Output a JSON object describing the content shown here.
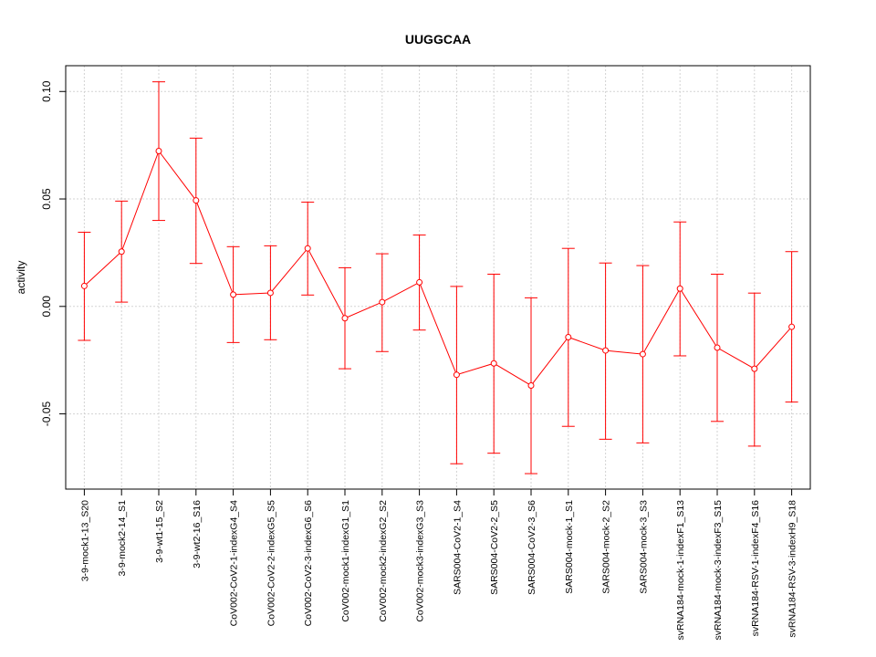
{
  "chart_data": {
    "type": "line",
    "title": "UUGGCAA",
    "xlabel": "",
    "ylabel": "activity",
    "ylim": [
      -0.085,
      0.112
    ],
    "yticks": [
      "0.10",
      "0.05",
      "0.00",
      "-0.05"
    ],
    "ytick_values": [
      0.1,
      0.05,
      0.0,
      -0.05
    ],
    "grid": true,
    "line_color": "#ff0000",
    "grid_color": "#d3d3d3",
    "categories": [
      "3-9-mock1-13_S20",
      "3-9-mock2-14_S1",
      "3-9-wt1-15_S2",
      "3-9-wt2-16_S16",
      "CoV002-CoV2-1-indexG4_S4",
      "CoV002-CoV2-2-indexG5_S5",
      "CoV002-CoV2-3-indexG6_S6",
      "CoV002-mock1-indexG1_S1",
      "CoV002-mock2-indexG2_S2",
      "CoV002-mock3-indexG3_S3",
      "SARS004-CoV2-1_S4",
      "SARS004-CoV2-2_S5",
      "SARS004-CoV2-3_S6",
      "SARS004-mock-1_S1",
      "SARS004-mock-2_S2",
      "SARS004-mock-3_S3",
      "svRNA184-mock-1-indexF1_S13",
      "svRNA184-mock-3-indexF3_S15",
      "svRNA184-RSV-1-indexF4_S16",
      "svRNA184-RSV-3-indexH9_S18"
    ],
    "series": [
      {
        "values": [
          0.0095,
          0.0255,
          0.0723,
          0.0493,
          0.0055,
          0.0063,
          0.027,
          -0.0055,
          0.002,
          0.0112,
          -0.0318,
          -0.0265,
          -0.0368,
          -0.0143,
          -0.0205,
          -0.0222,
          0.0083,
          -0.0192,
          -0.029,
          -0.0095
        ],
        "lower": [
          -0.0158,
          0.002,
          0.04,
          0.02,
          -0.0168,
          -0.0155,
          0.0053,
          -0.029,
          -0.021,
          -0.011,
          -0.0732,
          -0.0683,
          -0.0778,
          -0.0558,
          -0.0618,
          -0.0635,
          -0.023,
          -0.0535,
          -0.065,
          -0.0445
        ],
        "upper": [
          0.0345,
          0.049,
          0.1045,
          0.0783,
          0.0278,
          0.0282,
          0.0485,
          0.018,
          0.0245,
          0.0332,
          0.0093,
          0.015,
          0.004,
          0.027,
          0.0202,
          0.019,
          0.0393,
          0.015,
          0.0062,
          0.0255
        ]
      }
    ]
  }
}
